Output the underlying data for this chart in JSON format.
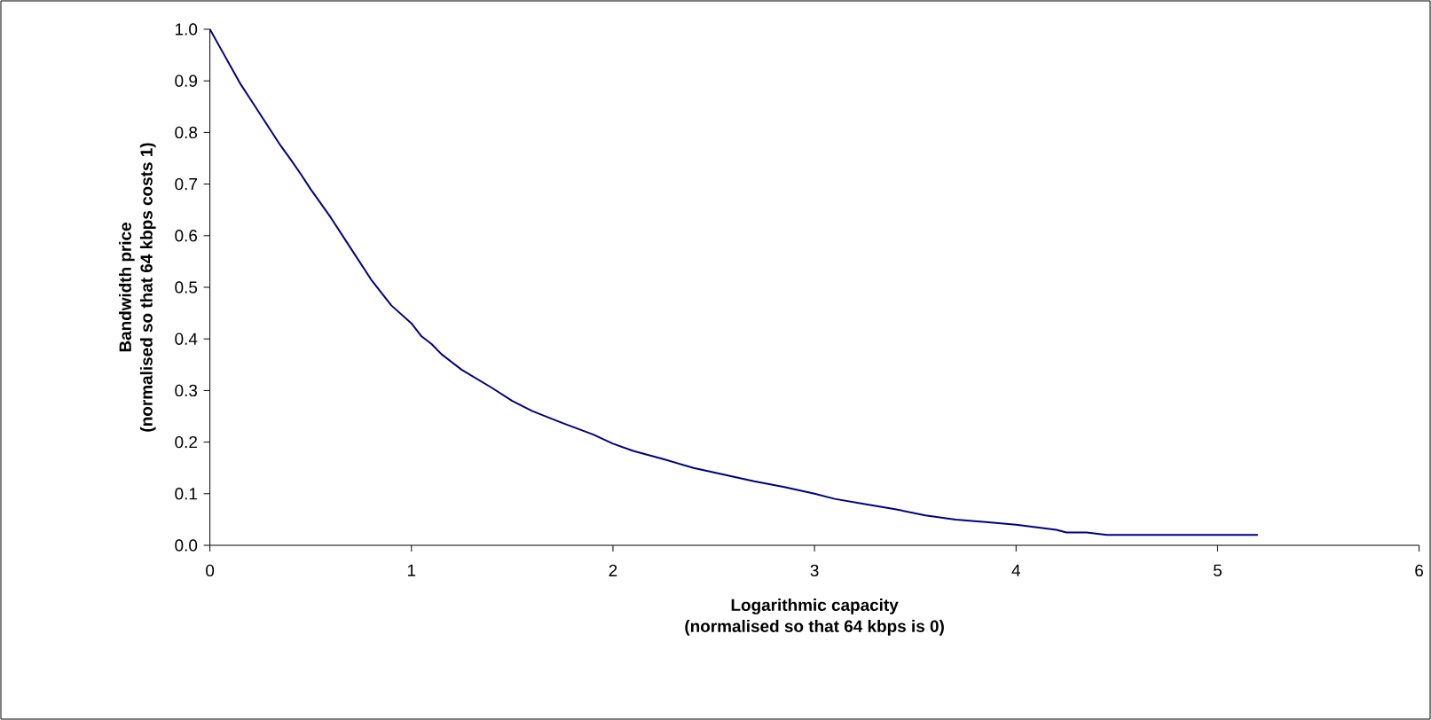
{
  "chart_data": {
    "type": "line",
    "xlabel": "Logarithmic capacity\n(normalised so that 64 kbps is 0)",
    "ylabel": "Bandwidth price\n(normalised so that 64 kbps costs 1)",
    "x": [
      0,
      0.05,
      0.1,
      0.15,
      0.2,
      0.25,
      0.3,
      0.35,
      0.4,
      0.45,
      0.5,
      0.6,
      0.7,
      0.75,
      0.8,
      0.85,
      0.9,
      1.0,
      1.05,
      1.1,
      1.15,
      1.25,
      1.4,
      1.5,
      1.6,
      1.75,
      1.9,
      2.0,
      2.1,
      2.25,
      2.4,
      2.55,
      2.7,
      2.85,
      3.0,
      3.1,
      3.25,
      3.4,
      3.55,
      3.7,
      3.85,
      4.0,
      4.2,
      4.25,
      4.35,
      4.45,
      5.2
    ],
    "series": [
      {
        "color": "#000080",
        "values": [
          1.0,
          0.965,
          0.93,
          0.895,
          0.865,
          0.835,
          0.805,
          0.775,
          0.748,
          0.72,
          0.69,
          0.635,
          0.575,
          0.545,
          0.515,
          0.49,
          0.465,
          0.43,
          0.405,
          0.39,
          0.37,
          0.34,
          0.305,
          0.28,
          0.26,
          0.237,
          0.215,
          0.197,
          0.183,
          0.167,
          0.15,
          0.137,
          0.124,
          0.113,
          0.1,
          0.09,
          0.08,
          0.07,
          0.058,
          0.05,
          0.045,
          0.04,
          0.03,
          0.025,
          0.025,
          0.02,
          0.02
        ]
      }
    ],
    "xlim": [
      0,
      6
    ],
    "xticks": [
      0,
      1,
      2,
      3,
      4,
      5,
      6
    ],
    "ylim": [
      0,
      1.0
    ],
    "yticks": [
      {
        "value": 0,
        "label": "0.0"
      },
      0.1,
      0.2,
      0.3,
      0.4,
      0.5,
      0.6,
      0.7,
      0.8,
      0.9,
      {
        "value": 1,
        "label": "1.0"
      }
    ],
    "grid": false,
    "marker": "none",
    "line_style": "solid"
  }
}
